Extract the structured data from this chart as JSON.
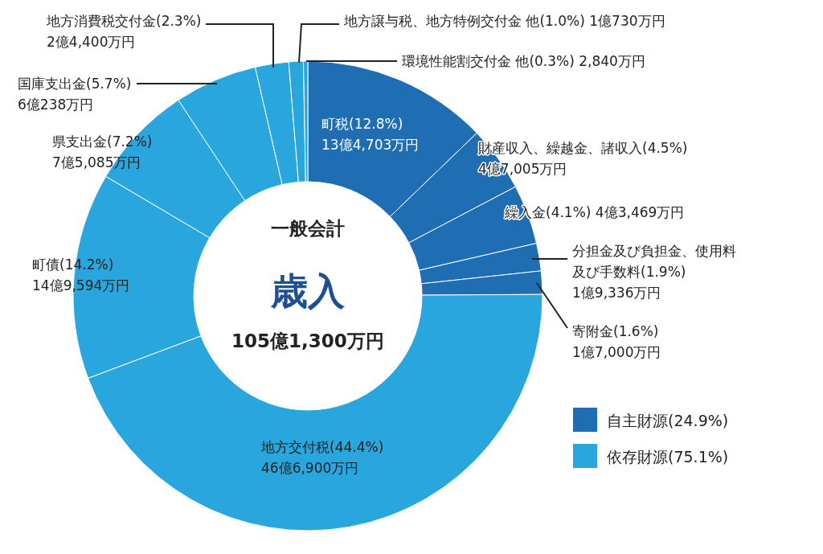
{
  "chart_data": {
    "type": "donut",
    "title": "歳入",
    "subtitle": "一般会計",
    "categories": [
      "町税",
      "財産収入、繰越金、諸収入",
      "繰入金",
      "分担金及び負担金、使用料及び手数料",
      "寄附金",
      "地方交付税",
      "町債",
      "県支出金",
      "国庫支出金",
      "地方消費税交付金",
      "地方譲与税、地方特例交付金 他",
      "環境性能割交付金 他"
    ],
    "values": [
      12.8,
      4.5,
      4.1,
      1.9,
      1.6,
      44.4,
      14.2,
      7.2,
      5.7,
      2.3,
      1.0,
      0.3
    ],
    "colors": [
      "#1f6db3",
      "#1f6db3",
      "#1f6db3",
      "#1f6db3",
      "#1f6db3",
      "#29a6dd",
      "#29a6dd",
      "#29a6dd",
      "#29a6dd",
      "#29a6dd",
      "#29a6dd",
      "#29a6dd"
    ],
    "value_labels": [
      "(12.8%)\n13億4,703万円",
      "(4.5%)\n4億7,005万円",
      "(4.1%) 4億3,469万円",
      "(1.9%)\n1億9,336万円",
      "(1.6%)\n1億7,000万円",
      "(44.4%)\n46億6,900万円",
      "(14.2%)\n14億9,594万円",
      "(7.2%)\n7億5,085万円",
      "(5.7%)\n6億238万円",
      "(2.3%)\n2億4,400万円",
      "(1.0%) 1億730万円",
      "(0.3%) 2,840万円"
    ],
    "annotations": [
      "105億1,300万円",
      "自主財源(24.9%)",
      "依存財源(75.1%)"
    ]
  }
}
